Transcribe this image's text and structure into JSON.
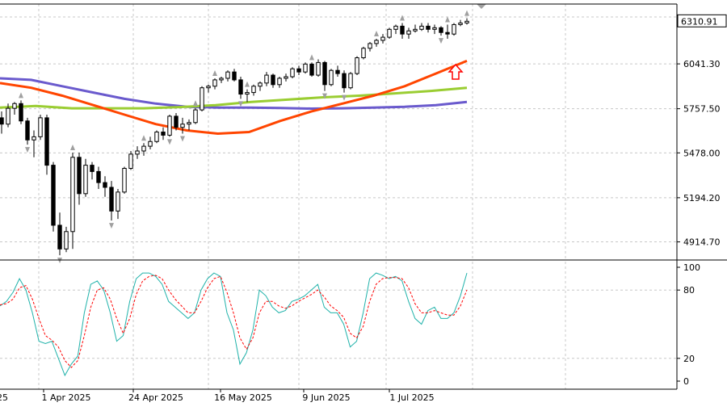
{
  "chart_data": [
    {
      "type": "candlestick",
      "panel": "price",
      "ylim": [
        4800,
        6420
      ],
      "price_ticks": [
        "6041.30",
        "5757.50",
        "5478.00",
        "5194.20",
        "4914.70"
      ],
      "current_price_label": "6310.91",
      "dates": [
        "1 Apr 2025",
        "24 Apr 2025",
        "16 May 2025",
        "9 Jun 2025",
        "1 Jul 2025"
      ],
      "first_date_fragment": "25",
      "candles": [
        [
          5700,
          5740,
          5600,
          5660
        ],
        [
          5660,
          5790,
          5640,
          5760
        ],
        [
          5760,
          5800,
          5720,
          5790
        ],
        [
          5790,
          5810,
          5660,
          5680
        ],
        [
          5680,
          5700,
          5530,
          5560
        ],
        [
          5560,
          5620,
          5450,
          5580
        ],
        [
          5580,
          5720,
          5560,
          5700
        ],
        [
          5700,
          5720,
          5340,
          5400
        ],
        [
          5400,
          5420,
          4980,
          5020
        ],
        [
          5020,
          5100,
          4830,
          4870
        ],
        [
          4870,
          5010,
          4850,
          4980
        ],
        [
          4980,
          5480,
          4870,
          5450
        ],
        [
          5450,
          5480,
          5150,
          5220
        ],
        [
          5220,
          5440,
          5200,
          5400
        ],
        [
          5400,
          5420,
          5310,
          5360
        ],
        [
          5360,
          5390,
          5250,
          5290
        ],
        [
          5290,
          5330,
          5200,
          5260
        ],
        [
          5260,
          5300,
          5050,
          5110
        ],
        [
          5110,
          5250,
          5060,
          5230
        ],
        [
          5230,
          5390,
          5220,
          5380
        ],
        [
          5380,
          5490,
          5370,
          5470
        ],
        [
          5470,
          5520,
          5440,
          5490
        ],
        [
          5490,
          5540,
          5460,
          5520
        ],
        [
          5520,
          5580,
          5500,
          5550
        ],
        [
          5550,
          5620,
          5540,
          5610
        ],
        [
          5610,
          5640,
          5560,
          5590
        ],
        [
          5590,
          5720,
          5580,
          5710
        ],
        [
          5710,
          5730,
          5620,
          5640
        ],
        [
          5640,
          5700,
          5600,
          5660
        ],
        [
          5660,
          5690,
          5620,
          5670
        ],
        [
          5670,
          5760,
          5660,
          5750
        ],
        [
          5750,
          5900,
          5740,
          5890
        ],
        [
          5890,
          5910,
          5860,
          5900
        ],
        [
          5900,
          5950,
          5880,
          5940
        ],
        [
          5940,
          5960,
          5920,
          5950
        ],
        [
          5950,
          6000,
          5930,
          5990
        ],
        [
          5990,
          6010,
          5930,
          5940
        ],
        [
          5940,
          5960,
          5820,
          5850
        ],
        [
          5850,
          5880,
          5800,
          5860
        ],
        [
          5860,
          5910,
          5840,
          5900
        ],
        [
          5900,
          5930,
          5870,
          5920
        ],
        [
          5920,
          5990,
          5900,
          5970
        ],
        [
          5970,
          5980,
          5890,
          5910
        ],
        [
          5910,
          5960,
          5890,
          5950
        ],
        [
          5950,
          5980,
          5930,
          5960
        ],
        [
          5960,
          6020,
          5950,
          6010
        ],
        [
          6010,
          6030,
          5970,
          5990
        ],
        [
          5990,
          6050,
          5980,
          6040
        ],
        [
          6040,
          6050,
          5960,
          5970
        ],
        [
          5970,
          6070,
          5960,
          6050
        ],
        [
          6050,
          6060,
          5870,
          5910
        ],
        [
          5910,
          6010,
          5900,
          6000
        ],
        [
          6000,
          6030,
          5960,
          5980
        ],
        [
          5980,
          6000,
          5860,
          5890
        ],
        [
          5890,
          5990,
          5880,
          5980
        ],
        [
          5980,
          6090,
          5970,
          6080
        ],
        [
          6080,
          6150,
          6070,
          6140
        ],
        [
          6140,
          6180,
          6120,
          6170
        ],
        [
          6170,
          6200,
          6150,
          6190
        ],
        [
          6190,
          6230,
          6170,
          6210
        ],
        [
          6210,
          6270,
          6200,
          6260
        ],
        [
          6260,
          6290,
          6230,
          6280
        ],
        [
          6280,
          6300,
          6200,
          6230
        ],
        [
          6230,
          6270,
          6200,
          6250
        ],
        [
          6250,
          6290,
          6240,
          6260
        ],
        [
          6260,
          6300,
          6250,
          6280
        ],
        [
          6280,
          6300,
          6240,
          6260
        ],
        [
          6260,
          6290,
          6230,
          6270
        ],
        [
          6270,
          6280,
          6220,
          6240
        ],
        [
          6240,
          6290,
          6200,
          6230
        ],
        [
          6230,
          6300,
          6220,
          6290
        ],
        [
          6290,
          6320,
          6280,
          6300
        ],
        [
          6300,
          6330,
          6290,
          6311
        ]
      ],
      "fractal_up": [
        3,
        11,
        22,
        30,
        33,
        38,
        48,
        58,
        62,
        69,
        72
      ],
      "fractal_down": [
        4,
        9,
        17,
        26,
        28,
        37,
        50,
        53,
        68
      ],
      "ma_red": [
        5920,
        5890,
        5840,
        5780,
        5720,
        5660,
        5620,
        5600,
        5610,
        5680,
        5740,
        5790,
        5840,
        5900,
        5980,
        6060
      ],
      "ma_green": [
        5765,
        5775,
        5760,
        5760,
        5760,
        5768,
        5780,
        5800,
        5815,
        5830,
        5840,
        5855,
        5870,
        5890
      ],
      "ma_blue": [
        5950,
        5940,
        5900,
        5860,
        5820,
        5790,
        5770,
        5765,
        5765,
        5762,
        5758,
        5760,
        5765,
        5770,
        5780,
        5800
      ],
      "signal": {
        "direction": "up",
        "color": "#ff0000"
      },
      "colors": {
        "ma_red": "#ff4500",
        "ma_green": "#9acd32",
        "ma_blue": "#6a5acd"
      }
    },
    {
      "type": "line",
      "panel": "stochastic",
      "ylim": [
        0,
        100
      ],
      "y_ticks": [
        "100",
        "80",
        "20",
        "0"
      ],
      "series": [
        {
          "values": [
            66,
            70,
            78,
            90,
            80,
            60,
            35,
            33,
            35,
            20,
            5,
            15,
            22,
            60,
            85,
            88,
            80,
            60,
            35,
            40,
            70,
            90,
            95,
            95,
            92,
            85,
            70,
            65,
            60,
            55,
            60,
            80,
            90,
            95,
            92,
            60,
            45,
            15,
            25,
            45,
            80,
            75,
            65,
            60,
            62,
            70,
            72,
            75,
            80,
            85,
            65,
            60,
            60,
            50,
            30,
            35,
            60,
            90,
            95,
            93,
            90,
            92,
            88,
            70,
            55,
            50,
            62,
            65,
            55,
            55,
            60,
            75,
            95
          ],
          "color": "#20b2aa"
        },
        {
          "values": [
            67,
            68,
            72,
            82,
            84,
            72,
            55,
            40,
            36,
            30,
            18,
            12,
            18,
            40,
            65,
            80,
            82,
            72,
            55,
            42,
            55,
            76,
            88,
            92,
            93,
            90,
            80,
            72,
            66,
            60,
            60,
            70,
            82,
            90,
            92,
            78,
            60,
            38,
            28,
            38,
            60,
            70,
            70,
            66,
            64,
            66,
            70,
            73,
            76,
            80,
            74,
            66,
            62,
            56,
            42,
            38,
            48,
            70,
            85,
            90,
            91,
            91,
            90,
            82,
            68,
            60,
            60,
            62,
            60,
            58,
            58,
            66,
            80
          ],
          "color": "#ff0000"
        }
      ]
    }
  ]
}
